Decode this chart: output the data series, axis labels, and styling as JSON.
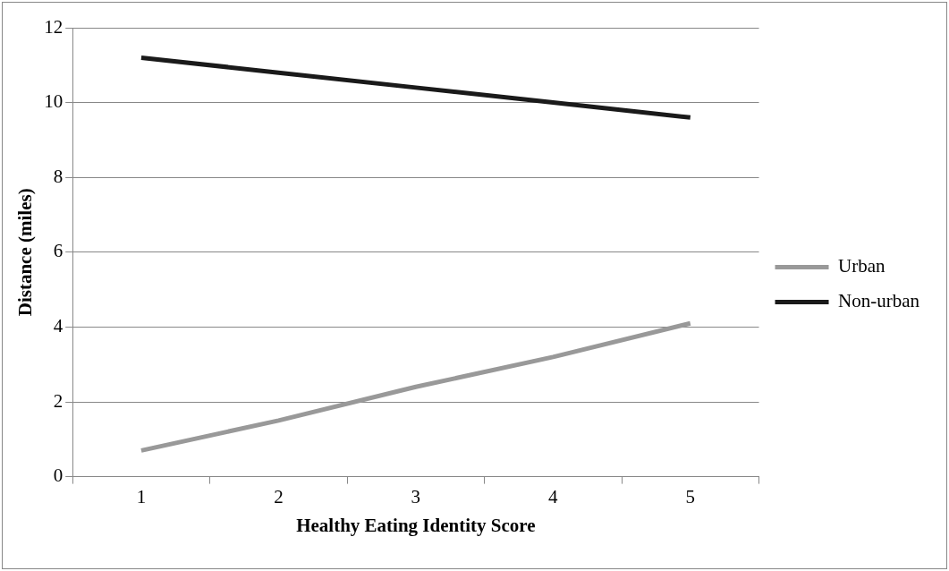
{
  "chart_data": {
    "type": "line",
    "xlabel": "Healthy Eating Identity Score",
    "ylabel": "Distance (miles)",
    "categories": [
      "1",
      "2",
      "3",
      "4",
      "5"
    ],
    "series": [
      {
        "name": "Urban",
        "color": "#999999",
        "values": [
          0.7,
          1.5,
          2.4,
          3.2,
          4.1
        ]
      },
      {
        "name": "Non-urban",
        "color": "#1a1a1a",
        "values": [
          11.2,
          10.8,
          10.4,
          10.0,
          9.6
        ]
      }
    ],
    "ylim": [
      0,
      12
    ],
    "yticks": [
      0,
      2,
      4,
      6,
      8,
      10,
      12
    ],
    "grid": "y",
    "legend": "right",
    "marker": "none",
    "line_style": "solid"
  }
}
